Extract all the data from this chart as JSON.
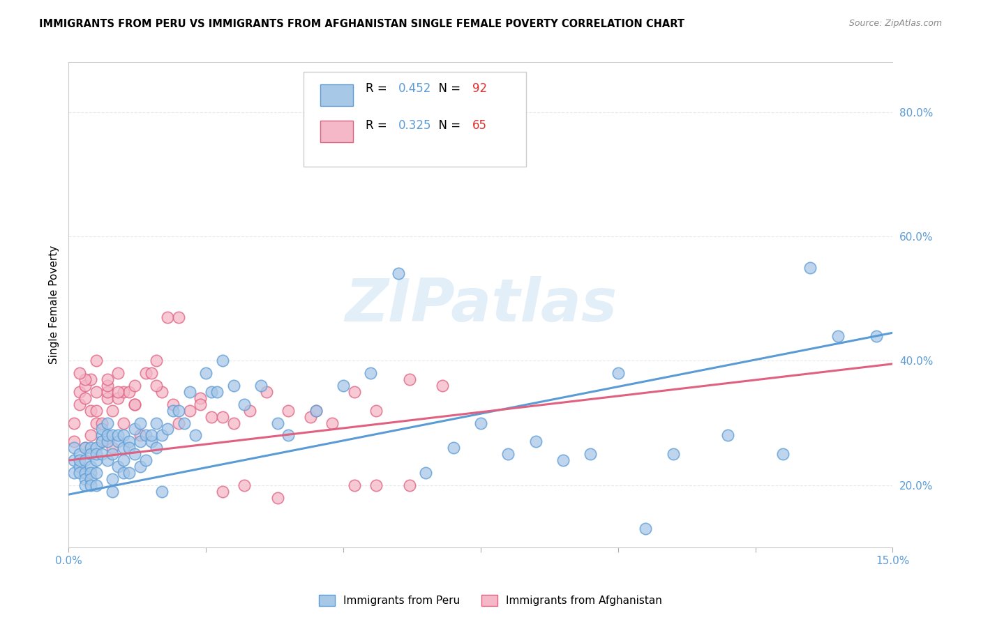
{
  "title": "IMMIGRANTS FROM PERU VS IMMIGRANTS FROM AFGHANISTAN SINGLE FEMALE POVERTY CORRELATION CHART",
  "source": "Source: ZipAtlas.com",
  "ylabel": "Single Female Poverty",
  "xlim": [
    0.0,
    0.15
  ],
  "ylim": [
    0.1,
    0.88
  ],
  "xticks": [
    0.0,
    0.025,
    0.05,
    0.075,
    0.1,
    0.125,
    0.15
  ],
  "xticklabels": [
    "0.0%",
    "",
    "",
    "",
    "",
    "",
    "15.0%"
  ],
  "yticks_right": [
    0.2,
    0.4,
    0.6,
    0.8
  ],
  "ytick_right_labels": [
    "20.0%",
    "40.0%",
    "60.0%",
    "80.0%"
  ],
  "peru_color": "#a8c8e8",
  "peru_edge": "#5b9bd5",
  "afghanistan_color": "#f4b8c8",
  "afghanistan_edge": "#e06080",
  "peru_line_color": "#5b9bd5",
  "afghanistan_line_color": "#e06080",
  "peru_R": "0.452",
  "peru_N": "92",
  "afghanistan_R": "0.325",
  "afghanistan_N": "65",
  "legend_R_color": "#5b9bd5",
  "legend_N_color": "#e03030",
  "watermark": "ZIPatlas",
  "watermark_color": "#d0e4f4",
  "grid_color": "#e8e8e8",
  "background_color": "#ffffff",
  "peru_x": [
    0.001,
    0.001,
    0.001,
    0.002,
    0.002,
    0.002,
    0.002,
    0.003,
    0.003,
    0.003,
    0.003,
    0.003,
    0.004,
    0.004,
    0.004,
    0.004,
    0.004,
    0.004,
    0.005,
    0.005,
    0.005,
    0.005,
    0.005,
    0.006,
    0.006,
    0.006,
    0.006,
    0.007,
    0.007,
    0.007,
    0.007,
    0.008,
    0.008,
    0.008,
    0.008,
    0.009,
    0.009,
    0.009,
    0.01,
    0.01,
    0.01,
    0.01,
    0.011,
    0.011,
    0.011,
    0.012,
    0.012,
    0.013,
    0.013,
    0.013,
    0.014,
    0.014,
    0.015,
    0.015,
    0.016,
    0.016,
    0.017,
    0.017,
    0.018,
    0.019,
    0.02,
    0.021,
    0.022,
    0.023,
    0.025,
    0.026,
    0.027,
    0.028,
    0.03,
    0.032,
    0.035,
    0.038,
    0.04,
    0.045,
    0.05,
    0.055,
    0.06,
    0.065,
    0.07,
    0.075,
    0.08,
    0.085,
    0.09,
    0.095,
    0.1,
    0.105,
    0.11,
    0.12,
    0.13,
    0.135,
    0.14,
    0.147
  ],
  "peru_y": [
    0.24,
    0.26,
    0.22,
    0.23,
    0.25,
    0.22,
    0.24,
    0.24,
    0.26,
    0.22,
    0.21,
    0.2,
    0.23,
    0.26,
    0.22,
    0.25,
    0.21,
    0.2,
    0.22,
    0.24,
    0.26,
    0.2,
    0.25,
    0.25,
    0.28,
    0.27,
    0.29,
    0.24,
    0.27,
    0.28,
    0.3,
    0.25,
    0.28,
    0.19,
    0.21,
    0.27,
    0.28,
    0.23,
    0.26,
    0.28,
    0.24,
    0.22,
    0.27,
    0.26,
    0.22,
    0.29,
    0.25,
    0.27,
    0.3,
    0.23,
    0.28,
    0.24,
    0.27,
    0.28,
    0.3,
    0.26,
    0.19,
    0.28,
    0.29,
    0.32,
    0.32,
    0.3,
    0.35,
    0.28,
    0.38,
    0.35,
    0.35,
    0.4,
    0.36,
    0.33,
    0.36,
    0.3,
    0.28,
    0.32,
    0.36,
    0.38,
    0.54,
    0.22,
    0.26,
    0.3,
    0.25,
    0.27,
    0.24,
    0.25,
    0.38,
    0.13,
    0.25,
    0.28,
    0.25,
    0.55,
    0.44,
    0.44
  ],
  "afghanistan_x": [
    0.001,
    0.001,
    0.002,
    0.002,
    0.003,
    0.003,
    0.003,
    0.004,
    0.004,
    0.004,
    0.005,
    0.005,
    0.005,
    0.006,
    0.006,
    0.007,
    0.007,
    0.007,
    0.008,
    0.008,
    0.009,
    0.009,
    0.01,
    0.01,
    0.011,
    0.012,
    0.012,
    0.013,
    0.014,
    0.015,
    0.016,
    0.017,
    0.018,
    0.019,
    0.02,
    0.022,
    0.024,
    0.026,
    0.028,
    0.03,
    0.033,
    0.036,
    0.04,
    0.044,
    0.048,
    0.052,
    0.056,
    0.062,
    0.068,
    0.052,
    0.056,
    0.062,
    0.045,
    0.038,
    0.032,
    0.028,
    0.024,
    0.02,
    0.016,
    0.012,
    0.009,
    0.007,
    0.005,
    0.003,
    0.002
  ],
  "afghanistan_y": [
    0.3,
    0.27,
    0.33,
    0.35,
    0.26,
    0.36,
    0.34,
    0.32,
    0.37,
    0.28,
    0.3,
    0.32,
    0.35,
    0.27,
    0.3,
    0.34,
    0.35,
    0.36,
    0.26,
    0.32,
    0.34,
    0.38,
    0.35,
    0.3,
    0.35,
    0.33,
    0.36,
    0.28,
    0.38,
    0.38,
    0.4,
    0.35,
    0.47,
    0.33,
    0.3,
    0.32,
    0.34,
    0.31,
    0.31,
    0.3,
    0.32,
    0.35,
    0.32,
    0.31,
    0.3,
    0.35,
    0.32,
    0.37,
    0.36,
    0.2,
    0.2,
    0.2,
    0.32,
    0.18,
    0.2,
    0.19,
    0.33,
    0.47,
    0.36,
    0.33,
    0.35,
    0.37,
    0.4,
    0.37,
    0.38
  ],
  "peru_line_x0": 0.0,
  "peru_line_x1": 0.15,
  "peru_line_y0": 0.185,
  "peru_line_y1": 0.445,
  "af_line_x0": 0.0,
  "af_line_x1": 0.15,
  "af_line_y0": 0.24,
  "af_line_y1": 0.395
}
